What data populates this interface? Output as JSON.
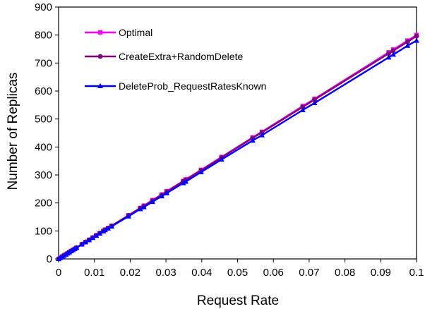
{
  "chart_data": {
    "type": "line",
    "title": "",
    "xlabel": "Request Rate",
    "ylabel": "Number of Replicas",
    "xlim": [
      0,
      0.1
    ],
    "ylim": [
      0,
      900
    ],
    "x_ticks": [
      "0",
      "0.01",
      "0.02",
      "0.03",
      "0.04",
      "0.05",
      "0.06",
      "0.07",
      "0.08",
      "0.09",
      "0.1"
    ],
    "y_ticks": [
      "0",
      "100",
      "200",
      "300",
      "400",
      "500",
      "600",
      "700",
      "800",
      "900"
    ],
    "grid": false,
    "legend_position": "top-left",
    "series": [
      {
        "name": "Optimal",
        "color": "#ff00ff",
        "marker": "square",
        "x": [
          0,
          0.0005,
          0.001,
          0.0015,
          0.002,
          0.0025,
          0.003,
          0.0035,
          0.004,
          0.0045,
          0.005,
          0.0065,
          0.0075,
          0.0085,
          0.0095,
          0.0105,
          0.0115,
          0.0125,
          0.013,
          0.0138,
          0.0148,
          0.0195,
          0.0228,
          0.0238,
          0.0262,
          0.0288,
          0.0302,
          0.0348,
          0.0355,
          0.0398,
          0.0455,
          0.0542,
          0.0568,
          0.0682,
          0.0715,
          0.0922,
          0.0935,
          0.0975,
          0.1
        ],
        "y": [
          0,
          4,
          8,
          12,
          16,
          20,
          24,
          28,
          32,
          36,
          40,
          52,
          60,
          68,
          76,
          84,
          92,
          100,
          104,
          110,
          118,
          156,
          182,
          190,
          210,
          230,
          242,
          278,
          284,
          318,
          364,
          434,
          454,
          546,
          572,
          738,
          748,
          780,
          800
        ]
      },
      {
        "name": "CreateExtra+RandomDelete",
        "color": "#800080",
        "marker": "circle",
        "x": [
          0,
          0.0005,
          0.001,
          0.0015,
          0.002,
          0.0025,
          0.003,
          0.0035,
          0.004,
          0.0045,
          0.005,
          0.0065,
          0.0075,
          0.0085,
          0.0095,
          0.0105,
          0.0115,
          0.0125,
          0.013,
          0.0138,
          0.0148,
          0.0195,
          0.0228,
          0.0238,
          0.0262,
          0.0288,
          0.0302,
          0.0348,
          0.0355,
          0.0398,
          0.0455,
          0.0542,
          0.0568,
          0.0682,
          0.0715,
          0.0922,
          0.0935,
          0.0975,
          0.1
        ],
        "y": [
          0,
          4,
          8,
          12,
          16,
          20,
          24,
          28,
          32,
          36,
          40,
          52,
          60,
          68,
          76,
          84,
          92,
          100,
          104,
          110,
          118,
          155,
          181,
          189,
          208,
          229,
          240,
          277,
          282,
          316,
          362,
          432,
          452,
          543,
          569,
          734,
          744,
          776,
          796
        ]
      },
      {
        "name": "DeleteProb_RequestRatesKnown",
        "color": "#0000ff",
        "marker": "triangle",
        "x": [
          0,
          0.0005,
          0.001,
          0.0015,
          0.002,
          0.0025,
          0.003,
          0.0035,
          0.004,
          0.0045,
          0.005,
          0.0065,
          0.0075,
          0.0085,
          0.0095,
          0.0105,
          0.0115,
          0.0125,
          0.013,
          0.0138,
          0.0148,
          0.0195,
          0.0228,
          0.0238,
          0.0262,
          0.0288,
          0.0302,
          0.0348,
          0.0355,
          0.0398,
          0.0455,
          0.0542,
          0.0568,
          0.0682,
          0.0715,
          0.0922,
          0.0935,
          0.0975,
          0.1
        ],
        "y": [
          0,
          4,
          8,
          12,
          16,
          20,
          24,
          28,
          32,
          36,
          40,
          52,
          60,
          67,
          75,
          83,
          91,
          99,
          103,
          109,
          116,
          152,
          178,
          185,
          204,
          224,
          235,
          271,
          276,
          310,
          355,
          423,
          442,
          532,
          557,
          720,
          730,
          762,
          780
        ]
      }
    ]
  }
}
